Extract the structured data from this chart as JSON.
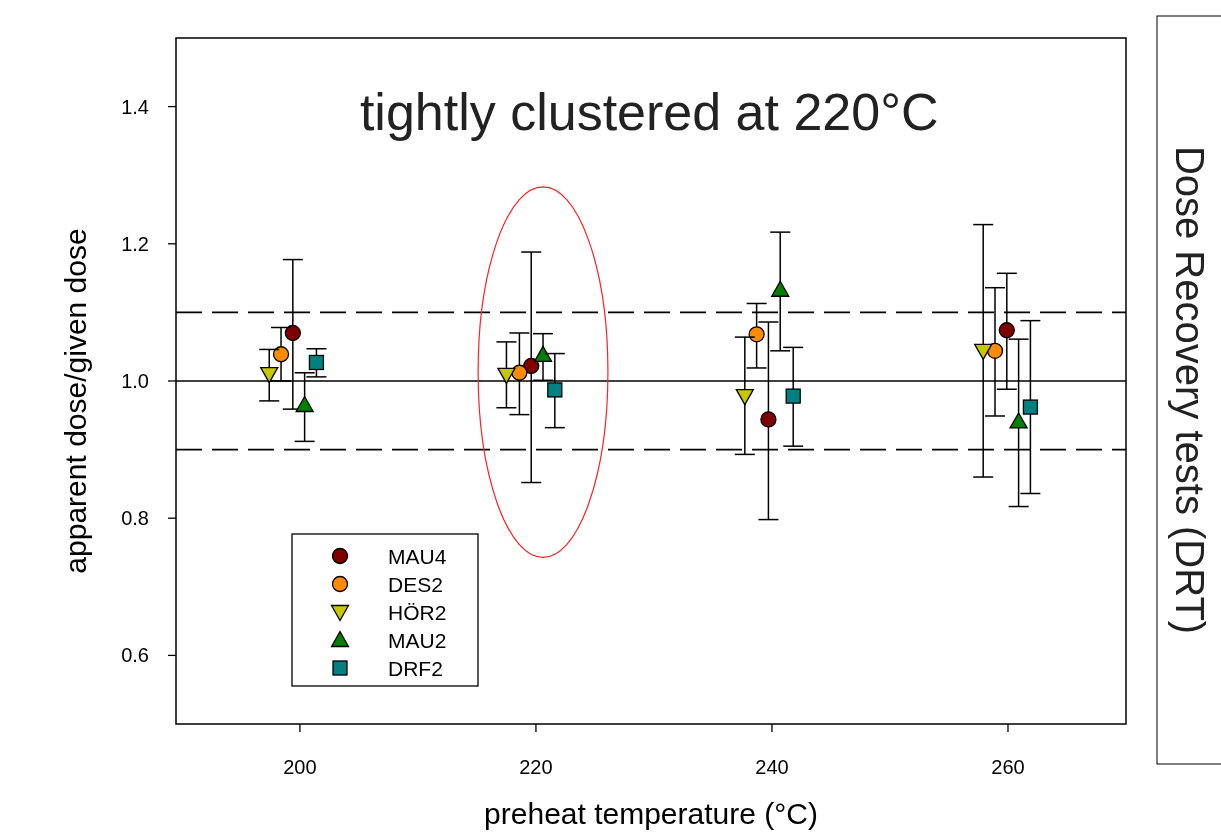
{
  "chart_data": {
    "type": "scatter",
    "title": "tightly clustered at 220°C",
    "xlabel": "preheat temperature (°C)",
    "ylabel": "apparent dose/given dose",
    "annotations": [
      "Dose Recovery tests (DRT)"
    ],
    "xlim": [
      189.5,
      270
    ],
    "xticks": [
      200,
      220,
      240,
      260
    ],
    "ylim": [
      0.5,
      1.5
    ],
    "yticks": [
      {
        "value": 0.6,
        "label": "0.6"
      },
      {
        "value": 0.8,
        "label": "0.8"
      },
      {
        "value": 1.0,
        "label": "1.0"
      },
      {
        "value": 1.2,
        "label": "1.2"
      },
      {
        "value": 1.4,
        "label": "1.4"
      }
    ],
    "grid": false,
    "legend": "bottom left",
    "ref_lines": [
      {
        "axis": "y",
        "value": 1.0,
        "line_style": "solid",
        "color": "#000000"
      },
      {
        "axis": "y",
        "value": 1.1,
        "line_style": "dashed",
        "color": "#000000"
      },
      {
        "axis": "y",
        "value": 0.9,
        "line_style": "dashed",
        "color": "#000000"
      }
    ],
    "series": [
      {
        "name": "MAU4",
        "color": "#800000",
        "marker": "circle",
        "x": [
          199.4,
          219.6,
          239.7,
          259.9
        ],
        "values": [
          1.07,
          1.022,
          0.944,
          1.074
        ],
        "errors": [
          [
            0.959,
            1.177
          ],
          [
            0.852,
            1.188
          ],
          [
            0.798,
            1.086
          ],
          [
            0.988,
            1.157
          ]
        ]
      },
      {
        "name": "DES2",
        "color": "#ff8c00",
        "marker": "circle",
        "x": [
          198.4,
          218.6,
          238.7,
          258.9
        ],
        "values": [
          1.039,
          1.012,
          1.068,
          1.044
        ],
        "errors": [
          [
            1.0,
            1.078
          ],
          [
            0.951,
            1.07
          ],
          [
            1.019,
            1.113
          ],
          [
            0.949,
            1.136
          ]
        ]
      },
      {
        "name": "HÖR2",
        "color": "#c8c800",
        "marker": "triangle-down",
        "x": [
          197.4,
          217.5,
          237.7,
          257.9
        ],
        "values": [
          1.01,
          1.009,
          0.978,
          1.044
        ],
        "errors": [
          [
            0.971,
            1.046
          ],
          [
            0.961,
            1.057
          ],
          [
            0.893,
            1.064
          ],
          [
            0.86,
            1.228
          ]
        ]
      },
      {
        "name": "MAU2",
        "color": "#008000",
        "marker": "triangle",
        "x": [
          200.4,
          220.6,
          240.7,
          260.9
        ],
        "values": [
          0.965,
          1.038,
          1.133,
          0.941
        ],
        "errors": [
          [
            0.912,
            1.012
          ],
          [
            1.001,
            1.069
          ],
          [
            1.044,
            1.217
          ],
          [
            0.817,
            1.061
          ]
        ]
      },
      {
        "name": "DRF2",
        "color": "#008080",
        "marker": "square",
        "x": [
          201.4,
          221.6,
          241.8,
          261.9
        ],
        "values": [
          1.027,
          0.987,
          0.978,
          0.962
        ],
        "errors": [
          [
            1.006,
            1.047
          ],
          [
            0.932,
            1.04
          ],
          [
            0.905,
            1.049
          ],
          [
            0.836,
            1.088
          ]
        ]
      }
    ]
  }
}
